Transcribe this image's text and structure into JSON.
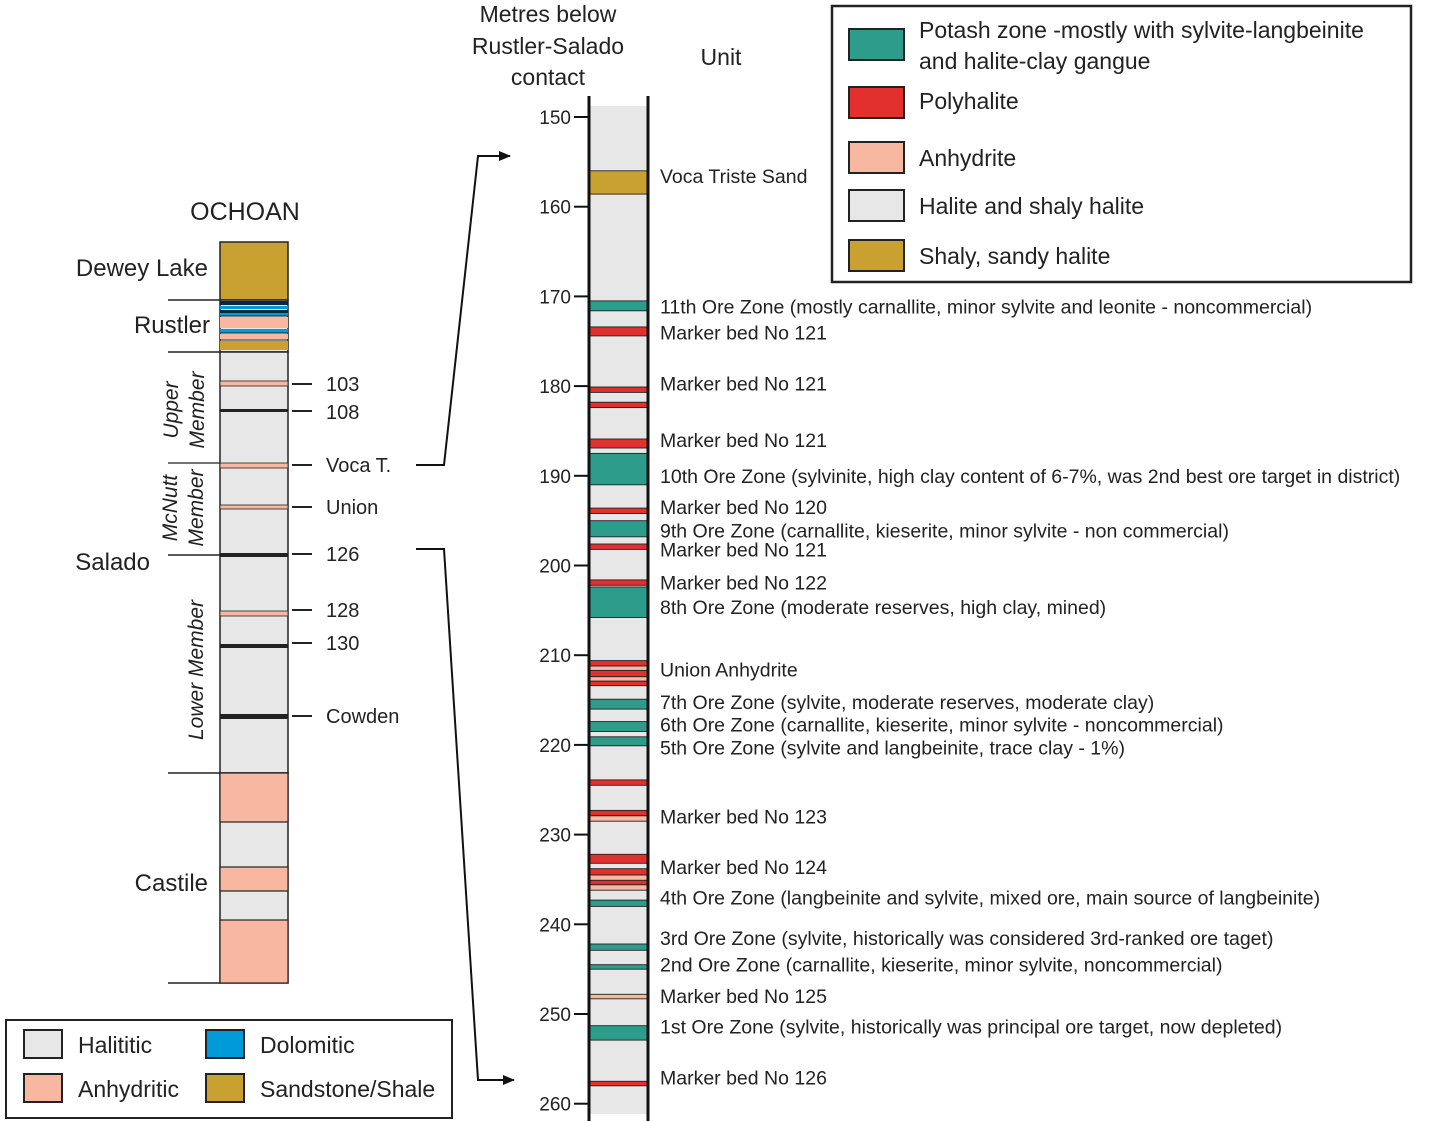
{
  "left_column": {
    "title": "OCHOAN",
    "formations": {
      "dewey_lake": "Dewey Lake",
      "rustler": "Rustler",
      "salado": "Salado",
      "castile": "Castile"
    },
    "members": {
      "upper_1": "Upper",
      "upper_2": "Member",
      "mcnutt_1": "McNutt",
      "mcnutt_2": "Member",
      "lower": "Lower Member"
    },
    "markers": [
      {
        "label": "103"
      },
      {
        "label": "108"
      },
      {
        "label": "Voca T."
      },
      {
        "label": "Union"
      },
      {
        "label": "126"
      },
      {
        "label": "128"
      },
      {
        "label": "130"
      },
      {
        "label": "Cowden"
      }
    ]
  },
  "left_legend": [
    {
      "label": "Halititic",
      "color": "#e7e7e7"
    },
    {
      "label": "Dolomitic",
      "color": "#009ad9"
    },
    {
      "label": "Anhydritic",
      "color": "#f7b7a0"
    },
    {
      "label": "Sandstone/Shale",
      "color": "#c9a130"
    }
  ],
  "detail_column": {
    "depth_header_1": "Metres below",
    "depth_header_2": "Rustler-Salado",
    "depth_header_3": "contact",
    "unit_header": "Unit",
    "depth_range": [
      147,
      261
    ],
    "ticks": [
      150,
      160,
      170,
      180,
      190,
      200,
      210,
      220,
      230,
      240,
      250,
      260
    ],
    "beds": [
      {
        "top": 156.0,
        "bottom": 158.6,
        "type": "shaly"
      },
      {
        "top": 170.5,
        "bottom": 171.6,
        "type": "potash"
      },
      {
        "top": 173.4,
        "bottom": 174.4,
        "type": "polyhalite"
      },
      {
        "top": 180.1,
        "bottom": 180.7,
        "type": "polyhalite"
      },
      {
        "top": 181.8,
        "bottom": 182.4,
        "type": "polyhalite"
      },
      {
        "top": 185.9,
        "bottom": 186.9,
        "type": "polyhalite"
      },
      {
        "top": 187.5,
        "bottom": 191.0,
        "type": "potash"
      },
      {
        "top": 193.6,
        "bottom": 194.2,
        "type": "polyhalite"
      },
      {
        "top": 195.0,
        "bottom": 196.8,
        "type": "potash"
      },
      {
        "top": 197.6,
        "bottom": 198.2,
        "type": "polyhalite"
      },
      {
        "top": 201.6,
        "bottom": 202.2,
        "type": "polyhalite"
      },
      {
        "top": 202.4,
        "bottom": 205.8,
        "type": "potash"
      },
      {
        "top": 210.6,
        "bottom": 211.2,
        "type": "polyhalite"
      },
      {
        "top": 211.2,
        "bottom": 211.7,
        "type": "anhydrite"
      },
      {
        "top": 211.7,
        "bottom": 212.4,
        "type": "polyhalite"
      },
      {
        "top": 212.4,
        "bottom": 212.9,
        "type": "anhydrite"
      },
      {
        "top": 212.9,
        "bottom": 213.4,
        "type": "polyhalite"
      },
      {
        "top": 214.9,
        "bottom": 216.0,
        "type": "potash"
      },
      {
        "top": 217.4,
        "bottom": 218.5,
        "type": "potash"
      },
      {
        "top": 219.1,
        "bottom": 220.1,
        "type": "potash"
      },
      {
        "top": 223.9,
        "bottom": 224.5,
        "type": "polyhalite"
      },
      {
        "top": 227.3,
        "bottom": 227.9,
        "type": "polyhalite"
      },
      {
        "top": 227.9,
        "bottom": 228.5,
        "type": "anhydrite"
      },
      {
        "top": 232.2,
        "bottom": 233.2,
        "type": "polyhalite"
      },
      {
        "top": 233.8,
        "bottom": 234.5,
        "type": "polyhalite"
      },
      {
        "top": 234.5,
        "bottom": 235.1,
        "type": "anhydrite"
      },
      {
        "top": 235.1,
        "bottom": 235.6,
        "type": "polyhalite"
      },
      {
        "top": 235.6,
        "bottom": 236.2,
        "type": "anhydrite"
      },
      {
        "top": 237.3,
        "bottom": 238.0,
        "type": "potash"
      },
      {
        "top": 242.2,
        "bottom": 242.9,
        "type": "potash"
      },
      {
        "top": 244.5,
        "bottom": 245.0,
        "type": "potash"
      },
      {
        "top": 247.8,
        "bottom": 248.3,
        "type": "anhydrite"
      },
      {
        "top": 251.3,
        "bottom": 252.9,
        "type": "potash"
      },
      {
        "top": 257.5,
        "bottom": 258.0,
        "type": "polyhalite"
      }
    ],
    "units": [
      {
        "depth": 156.6,
        "label": "Voca Triste Sand"
      },
      {
        "depth": 171.1,
        "label": "11th Ore Zone (mostly carnallite, minor sylvite and leonite - noncommercial)"
      },
      {
        "depth": 174.0,
        "label": "Marker bed No 121"
      },
      {
        "depth": 179.7,
        "label": "Marker bed No 121"
      },
      {
        "depth": 186.0,
        "label": "Marker bed No 121"
      },
      {
        "depth": 190.0,
        "label": "10th Ore Zone (sylvinite, high clay content of 6-7%, was 2nd best ore target in district)"
      },
      {
        "depth": 193.5,
        "label": "Marker bed No 120"
      },
      {
        "depth": 196.1,
        "label": "9th Ore Zone (carnallite, kieserite, minor sylvite - non commercial)"
      },
      {
        "depth": 198.2,
        "label": "Marker bed No 121"
      },
      {
        "depth": 201.9,
        "label": "Marker bed No 122"
      },
      {
        "depth": 204.6,
        "label": "8th Ore Zone (moderate reserves, high clay, mined)"
      },
      {
        "depth": 211.6,
        "label": "Union Anhydrite"
      },
      {
        "depth": 215.2,
        "label": "7th Ore Zone (sylvite, moderate reserves, moderate clay)"
      },
      {
        "depth": 217.7,
        "label": "6th Ore Zone (carnallite, kieserite, minor sylvite - noncommercial)"
      },
      {
        "depth": 220.3,
        "label": "5th Ore Zone (sylvite and langbeinite, trace clay - 1%)"
      },
      {
        "depth": 228.0,
        "label": "Marker bed No 123"
      },
      {
        "depth": 233.6,
        "label": "Marker bed No 124"
      },
      {
        "depth": 237.0,
        "label": "4th Ore Zone (langbeinite and sylvite, mixed ore, main source of langbeinite)"
      },
      {
        "depth": 241.5,
        "label": "3rd Ore Zone (sylvite, historically was considered 3rd-ranked ore taget)"
      },
      {
        "depth": 244.5,
        "label": "2nd Ore Zone (carnallite, kieserite, minor sylvite, noncommercial)"
      },
      {
        "depth": 248.0,
        "label": "Marker bed No 125"
      },
      {
        "depth": 251.4,
        "label": "1st Ore Zone (sylvite, historically was principal ore target, now depleted)"
      },
      {
        "depth": 257.1,
        "label": "Marker bed No 126"
      }
    ]
  },
  "right_legend": [
    {
      "label_1": "Potash zone -mostly with sylvite-langbeinite",
      "label_2": "and halite-clay gangue",
      "color": "#2e9c8a"
    },
    {
      "label_1": "Polyhalite",
      "color": "#e2302f"
    },
    {
      "label_1": "Anhydrite",
      "color": "#f7b7a0"
    },
    {
      "label_1": "Halite and shaly halite",
      "color": "#e7e7e7"
    },
    {
      "label_1": "Shaly, sandy halite",
      "color": "#c9a130"
    }
  ],
  "colors": {
    "potash": "#2e9c8a",
    "polyhalite": "#e2302f",
    "anhydrite": "#f7b7a0",
    "halite": "#e7e7e7",
    "shaly": "#c9a130",
    "dolomitic": "#009ad9"
  }
}
